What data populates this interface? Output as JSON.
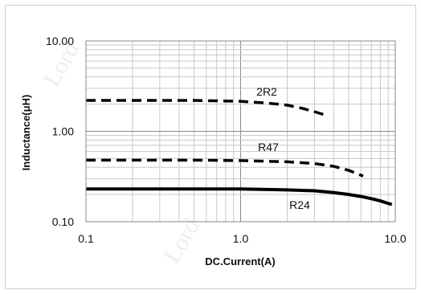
{
  "chart_data": {
    "type": "line",
    "x_scale": "log",
    "y_scale": "log",
    "xlim": [
      0.1,
      10.0
    ],
    "ylim": [
      0.1,
      10.0
    ],
    "grid": true,
    "xlabel": "DC.Current(A)",
    "ylabel": "Inductance(μH)",
    "x_tick_labels": [
      "0.1",
      "1.0",
      "10.0"
    ],
    "y_tick_labels": [
      "0.10",
      "1.00",
      "10.00"
    ],
    "series": [
      {
        "name": "2R2",
        "style": "dashed",
        "color": "#000000",
        "x": [
          0.1,
          0.2,
          0.5,
          1.0,
          1.5,
          2.0,
          2.5,
          3.0,
          3.6
        ],
        "y": [
          2.2,
          2.2,
          2.2,
          2.15,
          2.05,
          1.95,
          1.8,
          1.65,
          1.5
        ]
      },
      {
        "name": "R47",
        "style": "dashed",
        "color": "#000000",
        "x": [
          0.1,
          0.2,
          0.5,
          1.0,
          2.0,
          3.0,
          4.0,
          5.0,
          6.2
        ],
        "y": [
          0.48,
          0.48,
          0.48,
          0.475,
          0.46,
          0.44,
          0.41,
          0.37,
          0.32
        ]
      },
      {
        "name": "R24",
        "style": "solid",
        "color": "#000000",
        "x": [
          0.1,
          0.3,
          1.0,
          2.0,
          3.0,
          4.0,
          5.0,
          6.0,
          7.0,
          8.0,
          9.5
        ],
        "y": [
          0.23,
          0.23,
          0.23,
          0.225,
          0.22,
          0.21,
          0.2,
          0.19,
          0.18,
          0.17,
          0.155
        ]
      }
    ],
    "watermark": "Lord"
  }
}
